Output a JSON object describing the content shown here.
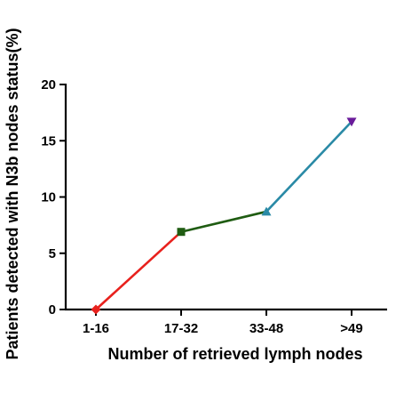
{
  "chart_data": {
    "type": "line",
    "title": "",
    "xlabel": "Number of retrieved lymph nodes",
    "ylabel": "Patients detected with N3b nodes status(%)",
    "categories": [
      "1-16",
      "17-32",
      "33-48",
      ">49"
    ],
    "values": [
      0,
      6.9,
      8.7,
      16.7
    ],
    "ylim": [
      0,
      20
    ],
    "yticks": [
      0,
      5,
      10,
      15,
      20
    ],
    "grid": false,
    "legend": "none",
    "segments": [
      {
        "from": 0,
        "to": 1,
        "color": "#e8211d"
      },
      {
        "from": 1,
        "to": 2,
        "color": "#1f5c12"
      },
      {
        "from": 2,
        "to": 3,
        "color": "#2a8aa6"
      }
    ],
    "markers": [
      {
        "shape": "diamond",
        "color": "#e8211d"
      },
      {
        "shape": "square",
        "color": "#1f5c12"
      },
      {
        "shape": "triangle-up",
        "color": "#2a8aa6"
      },
      {
        "shape": "triangle-down",
        "color": "#6a1b9a"
      }
    ]
  }
}
